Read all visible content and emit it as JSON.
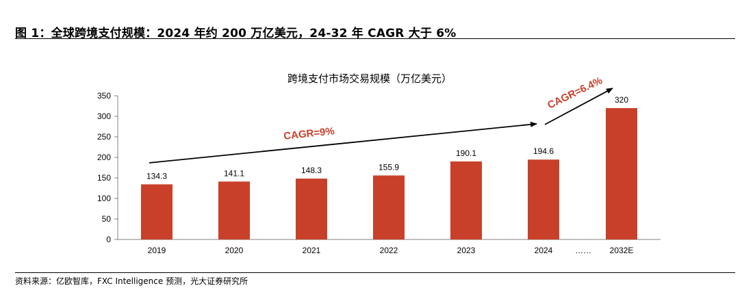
{
  "figure": {
    "title": "图 1：全球跨境支付规模：2024 年约 200 万亿美元，24-32 年 CAGR 大于 6%",
    "source": "资料来源：亿欧智库，FXC Intelligence 预测，光大证券研究所"
  },
  "chart_data": {
    "type": "bar",
    "title": "跨境支付市场交易规模（万亿美元）",
    "categories": [
      "2019",
      "2020",
      "2021",
      "2022",
      "2023",
      "2024",
      "2032E"
    ],
    "series": [
      {
        "values": [
          134.3,
          141.1,
          148.3,
          155.9,
          190.1,
          194.6,
          320
        ]
      }
    ],
    "data_labels": [
      "134.3",
      "141.1",
      "148.3",
      "155.9",
      "190.1",
      "194.6",
      "320"
    ],
    "yticks": [
      "0",
      "50",
      "100",
      "150",
      "200",
      "250",
      "300",
      "350"
    ],
    "ylim": [
      0,
      350
    ],
    "gap_marker": "……",
    "grid": false,
    "bar_color": "#c8402a",
    "annotations": [
      {
        "text": "CAGR=9%"
      },
      {
        "text": "CAGR=6.4%"
      }
    ]
  }
}
